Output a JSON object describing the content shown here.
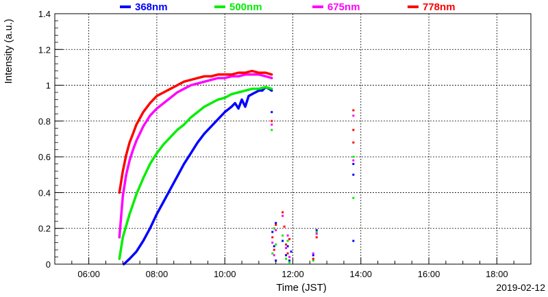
{
  "chart_data": {
    "type": "scatter",
    "xlabel": "Time (JST)",
    "ylabel": "Intensity (a.u.)",
    "date_label": "2019-02-12",
    "x_unit": "hours",
    "xlim": [
      5,
      19
    ],
    "ylim": [
      0,
      1.4
    ],
    "x_ticks": [
      {
        "value": 6,
        "label": "06:00"
      },
      {
        "value": 8,
        "label": "08:00"
      },
      {
        "value": 10,
        "label": "10:00"
      },
      {
        "value": 12,
        "label": "12:00"
      },
      {
        "value": 14,
        "label": "14:00"
      },
      {
        "value": 16,
        "label": "16:00"
      },
      {
        "value": 18,
        "label": "18:00"
      }
    ],
    "y_ticks": [
      {
        "value": 0,
        "label": "0"
      },
      {
        "value": 0.2,
        "label": "0.2"
      },
      {
        "value": 0.4,
        "label": "0.4"
      },
      {
        "value": 0.6,
        "label": "0.6"
      },
      {
        "value": 0.8,
        "label": "0.8"
      },
      {
        "value": 1.0,
        "label": "1"
      },
      {
        "value": 1.2,
        "label": "1.2"
      },
      {
        "value": 1.4,
        "label": "1.4"
      }
    ],
    "grid": true,
    "legend_position": "top",
    "series": [
      {
        "name": "368nm",
        "color": "#0000ff",
        "x": [
          7.03,
          7.2,
          7.4,
          7.6,
          7.8,
          8.0,
          8.2,
          8.4,
          8.6,
          8.8,
          9.0,
          9.2,
          9.4,
          9.6,
          9.8,
          10.0,
          10.2,
          10.3,
          10.4,
          10.5,
          10.6,
          10.7,
          10.8,
          10.9,
          11.0,
          11.1,
          11.2,
          11.3,
          11.38
        ],
        "y": [
          0.0,
          0.03,
          0.07,
          0.13,
          0.2,
          0.28,
          0.35,
          0.42,
          0.49,
          0.56,
          0.62,
          0.68,
          0.73,
          0.77,
          0.81,
          0.85,
          0.88,
          0.9,
          0.87,
          0.92,
          0.88,
          0.94,
          0.95,
          0.96,
          0.97,
          0.97,
          0.99,
          0.98,
          0.97
        ],
        "scatter": {
          "x": [
            11.38,
            11.4,
            11.45,
            11.5,
            11.5,
            11.7,
            11.8,
            11.85,
            11.9,
            11.95,
            12.6,
            12.7,
            13.78,
            13.78,
            13.78
          ],
          "y": [
            0.85,
            0.18,
            0.1,
            0.23,
            0.02,
            0.13,
            0.05,
            0.1,
            0.02,
            0.07,
            0.05,
            0.19,
            0.56,
            0.5,
            0.13
          ]
        }
      },
      {
        "name": "500nm",
        "color": "#00ee00",
        "x": [
          6.9,
          7.0,
          7.2,
          7.4,
          7.6,
          7.8,
          8.0,
          8.2,
          8.4,
          8.6,
          8.8,
          9.0,
          9.2,
          9.4,
          9.6,
          9.8,
          10.0,
          10.2,
          10.4,
          10.6,
          10.8,
          11.0,
          11.2,
          11.38
        ],
        "y": [
          0.03,
          0.15,
          0.28,
          0.39,
          0.48,
          0.56,
          0.62,
          0.67,
          0.71,
          0.75,
          0.78,
          0.82,
          0.85,
          0.88,
          0.9,
          0.92,
          0.93,
          0.95,
          0.96,
          0.97,
          0.98,
          0.98,
          0.99,
          0.98
        ],
        "scatter": {
          "x": [
            11.38,
            11.4,
            11.45,
            11.5,
            11.7,
            11.8,
            11.85,
            11.9,
            12.6,
            12.7,
            13.78,
            13.78
          ],
          "y": [
            0.75,
            0.06,
            0.2,
            0.11,
            0.16,
            0.03,
            0.13,
            0.01,
            0.02,
            0.18,
            0.6,
            0.37
          ]
        }
      },
      {
        "name": "675nm",
        "color": "#ff00ff",
        "x": [
          6.9,
          7.0,
          7.1,
          7.2,
          7.3,
          7.4,
          7.6,
          7.8,
          8.0,
          8.2,
          8.4,
          8.6,
          8.8,
          9.0,
          9.2,
          9.4,
          9.6,
          9.8,
          10.0,
          10.2,
          10.4,
          10.6,
          10.8,
          11.0,
          11.2,
          11.38
        ],
        "y": [
          0.15,
          0.38,
          0.5,
          0.58,
          0.64,
          0.69,
          0.77,
          0.83,
          0.87,
          0.9,
          0.93,
          0.96,
          0.98,
          1.0,
          1.01,
          1.02,
          1.03,
          1.04,
          1.04,
          1.05,
          1.05,
          1.06,
          1.06,
          1.06,
          1.05,
          1.04
        ],
        "scatter": {
          "x": [
            11.38,
            11.4,
            11.45,
            11.5,
            11.7,
            11.8,
            11.85,
            11.9,
            12.6,
            12.7,
            13.78,
            13.78
          ],
          "y": [
            0.78,
            0.12,
            0.05,
            0.19,
            0.27,
            0.09,
            0.16,
            0.04,
            0.06,
            0.17,
            0.83,
            0.58
          ]
        }
      },
      {
        "name": "778nm",
        "color": "#ff0000",
        "x": [
          6.9,
          7.0,
          7.1,
          7.2,
          7.3,
          7.4,
          7.6,
          7.8,
          8.0,
          8.2,
          8.4,
          8.6,
          8.8,
          9.0,
          9.2,
          9.4,
          9.6,
          9.8,
          10.0,
          10.2,
          10.4,
          10.6,
          10.8,
          11.0,
          11.2,
          11.38
        ],
        "y": [
          0.4,
          0.52,
          0.61,
          0.68,
          0.73,
          0.78,
          0.85,
          0.9,
          0.94,
          0.96,
          0.98,
          1.0,
          1.02,
          1.03,
          1.04,
          1.05,
          1.05,
          1.06,
          1.06,
          1.06,
          1.07,
          1.07,
          1.08,
          1.07,
          1.07,
          1.06
        ],
        "scatter": {
          "x": [
            11.38,
            11.4,
            11.45,
            11.5,
            11.7,
            11.75,
            11.8,
            11.85,
            11.9,
            12.6,
            12.7,
            13.78,
            13.78,
            13.78
          ],
          "y": [
            0.8,
            0.15,
            0.08,
            0.22,
            0.29,
            0.21,
            0.11,
            0.06,
            0.14,
            0.03,
            0.15,
            0.86,
            0.75,
            0.68
          ]
        }
      }
    ]
  }
}
